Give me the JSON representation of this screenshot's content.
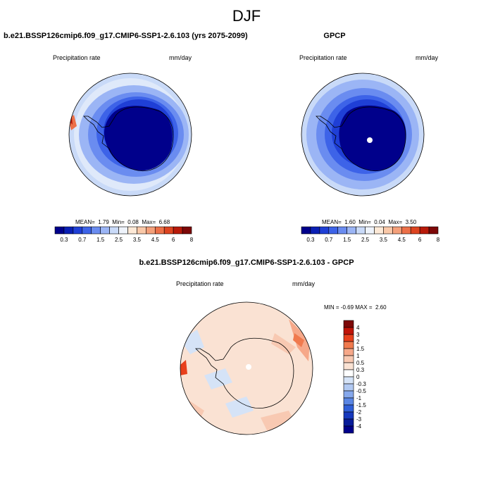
{
  "figure": {
    "season": "DJF"
  },
  "panel_model": {
    "title": "b.e21.BSSP126cmip6.f09_g17.CMIP6-SSP1-2.6.103 (yrs 2075-2099)",
    "variable": "Precipitation rate",
    "units": "mm/day",
    "stats": {
      "mean_label": "MEAN=",
      "mean": "1.79",
      "min_label": "Min=",
      "min": "0.08",
      "max_label": "Max=",
      "max": "6.68"
    }
  },
  "panel_obs": {
    "title": "GPCP",
    "variable": "Precipitation rate",
    "units": "mm/day",
    "stats": {
      "mean_label": "MEAN=",
      "mean": "1.60",
      "min_label": "Min=",
      "min": "0.04",
      "max_label": "Max=",
      "max": "3.50"
    }
  },
  "panel_diff": {
    "title": "b.e21.BSSP126cmip6.f09_g17.CMIP6-SSP1-2.6.103 - GPCP",
    "variable": "Precipitation rate",
    "units": "mm/day",
    "minmax": {
      "min_label": "MIN =",
      "min": "-0.69",
      "max_label": "MAX =",
      "max": "2.60"
    }
  },
  "colorbar_precip": {
    "colors": [
      "#00008b",
      "#0a1fb4",
      "#1f3fd6",
      "#3d63e8",
      "#6a8cf0",
      "#9bb5f5",
      "#c9daf8",
      "#eef3fb",
      "#fde9d7",
      "#f9c8a8",
      "#f4a07a",
      "#ec7048",
      "#dd4420",
      "#b81a0a",
      "#7d0808"
    ],
    "tick_labels": [
      "0.3",
      "0.7",
      "1.5",
      "2.5",
      "3.5",
      "4.5",
      "6",
      "8"
    ]
  },
  "colorbar_diff": {
    "colors": [
      "#7d0808",
      "#c01408",
      "#e8401c",
      "#f07a4e",
      "#f6a889",
      "#f8c9b2",
      "#fae2d3",
      "#ffffff",
      "#d5e3f7",
      "#b1c9f2",
      "#86a8ec",
      "#5a86e4",
      "#2f5fd8",
      "#1638bd",
      "#081c9a",
      "#00008b"
    ],
    "tick_labels": [
      "4",
      "3",
      "2",
      "1.5",
      "1",
      "0.5",
      "0.3",
      "0",
      "-0.3",
      "-0.5",
      "-1",
      "-1.5",
      "-2",
      "-3",
      "-4"
    ]
  },
  "map_legend_icons": [
    "polar-stereographic-map",
    "antarctica-coastline"
  ]
}
